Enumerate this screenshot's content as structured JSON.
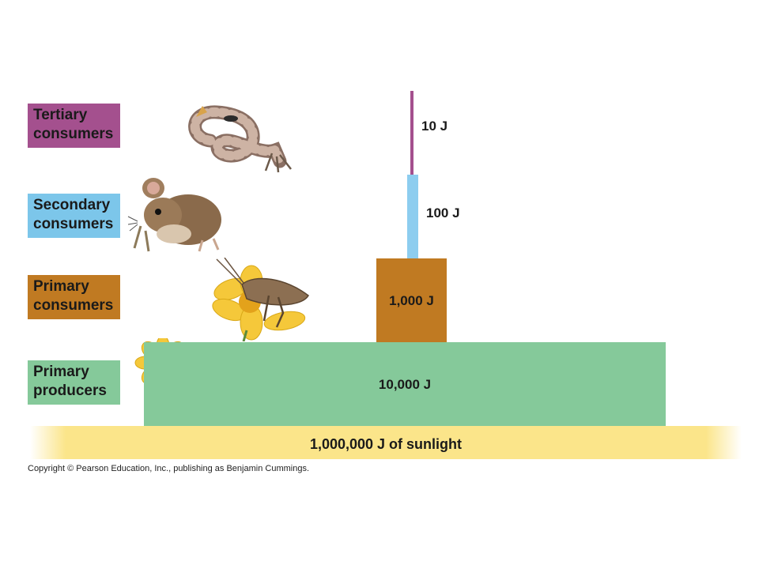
{
  "levels": [
    {
      "id": "tertiary",
      "label_line1": "Tertiary",
      "label_line2": "consumers",
      "energy": "10 J",
      "color": "#a4508e",
      "organism": "snake-illustration"
    },
    {
      "id": "secondary",
      "label_line1": "Secondary",
      "label_line2": "consumers",
      "energy": "100 J",
      "color": "#7cc6ea",
      "organism": "mouse-illustration"
    },
    {
      "id": "primary_consumers",
      "label_line1": "Primary",
      "label_line2": "consumers",
      "energy": "1,000 J",
      "color": "#c07a22",
      "organism": "grasshopper-on-flower-illustration"
    },
    {
      "id": "primary_producers",
      "label_line1": "Primary",
      "label_line2": "producers",
      "energy": "10,000 J",
      "color": "#85c99a",
      "organism": "flower-plant-illustration"
    }
  ],
  "base": {
    "text": "1,000,000 J of sunlight",
    "color": "#fbe58a"
  },
  "copyright": "Copyright © Pearson Education, Inc., publishing as Benjamin Cummings."
}
